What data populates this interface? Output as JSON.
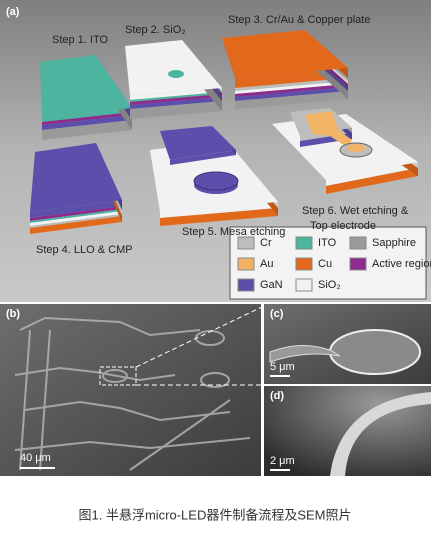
{
  "panel_a": {
    "label": "(a)",
    "steps": [
      {
        "lines": [
          "Step 1. ITO"
        ]
      },
      {
        "lines": [
          "Step 2. SiO₂"
        ]
      },
      {
        "lines": [
          "Step 3. Cr/Au & Copper plate"
        ]
      },
      {
        "lines": [
          "Step 4. LLO & CMP"
        ]
      },
      {
        "lines": [
          "Step 5. Mesa etching"
        ]
      },
      {
        "lines": [
          "Step 6. Wet etching &",
          "Top electrode"
        ]
      }
    ],
    "legend": [
      {
        "name": "Cr",
        "color": "#bdbdbd"
      },
      {
        "name": "ITO",
        "color": "#4db59f"
      },
      {
        "name": "Sapphire",
        "color": "#9a9a9a"
      },
      {
        "name": "Au",
        "color": "#f1b466"
      },
      {
        "name": "Cu",
        "color": "#e2691b"
      },
      {
        "name": "Active region",
        "color": "#8e2b8c"
      },
      {
        "name": "GaN",
        "color": "#5b4fab"
      },
      {
        "name": "SiO₂",
        "color": "#f2f2f2"
      }
    ]
  },
  "panel_b": {
    "label": "(b)",
    "scale": "40 μm"
  },
  "panel_c": {
    "label": "(c)",
    "scale": "5 μm"
  },
  "panel_d": {
    "label": "(d)",
    "scale": "2 μm"
  },
  "caption": "图1. 半悬浮micro-LED器件制备流程及SEM照片"
}
